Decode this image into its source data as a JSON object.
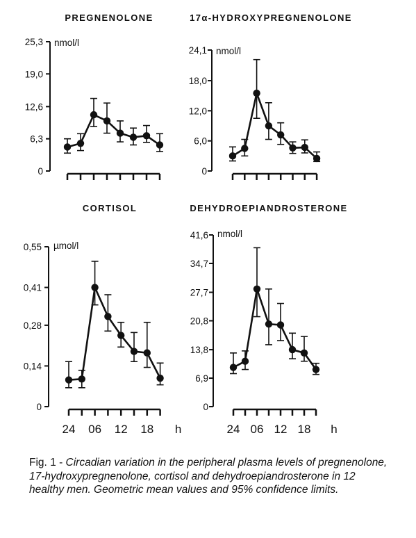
{
  "caption": {
    "figure_label": "Fig. 1 - ",
    "text": "Circadian variation in the peripheral plasma levels of pregnenolone, 17-hydroxypregnenolone, cortisol and dehydroepiandrosterone in 12 healthy men. Geometric mean values and 95% confidence limits."
  },
  "colors": {
    "ink": "#111111",
    "background": "#ffffff"
  },
  "chart_data": [
    {
      "type": "line",
      "title": "PREGNENOLONE",
      "unit": "nmol/l",
      "yticks": [
        "25,3",
        "19,0",
        "12,6",
        "6,3",
        "0"
      ],
      "ylim": [
        0,
        25.3
      ],
      "xtick_labels": [],
      "series": [
        {
          "values": [
            4.7,
            5.4,
            11.0,
            9.8,
            7.4,
            6.6,
            6.9,
            5.1
          ],
          "lower": [
            3.5,
            4.0,
            8.7,
            7.4,
            5.7,
            5.1,
            5.6,
            3.8
          ],
          "upper": [
            6.3,
            7.3,
            14.2,
            13.3,
            9.8,
            8.4,
            8.9,
            7.3
          ]
        }
      ]
    },
    {
      "type": "line",
      "title": "17α-HYDROXYPREGNENOLONE",
      "unit": "nmol/l",
      "yticks": [
        "24,1",
        "18,0",
        "12,0",
        "6,0",
        "0"
      ],
      "ylim": [
        0,
        24.1
      ],
      "xtick_labels": [],
      "series": [
        {
          "values": [
            3.0,
            4.5,
            15.5,
            9.0,
            7.2,
            4.6,
            4.7,
            2.5
          ],
          "lower": [
            2.0,
            3.0,
            10.5,
            6.3,
            5.3,
            3.5,
            3.6,
            1.9
          ],
          "upper": [
            4.8,
            6.3,
            22.2,
            13.6,
            9.6,
            5.8,
            6.2,
            3.8
          ]
        }
      ]
    },
    {
      "type": "line",
      "title": "CORTISOL",
      "unit": "µmol/l",
      "yticks": [
        "0,55",
        "0,41",
        "0,28",
        "0,14",
        "0"
      ],
      "ylim": [
        0,
        0.55
      ],
      "xtick_labels": [
        "24",
        "06",
        "12",
        "18",
        "h"
      ],
      "series": [
        {
          "values": [
            0.092,
            0.095,
            0.41,
            0.31,
            0.245,
            0.19,
            0.185,
            0.098
          ],
          "lower": [
            0.065,
            0.065,
            0.35,
            0.26,
            0.205,
            0.155,
            0.135,
            0.075
          ],
          "upper": [
            0.155,
            0.125,
            0.5,
            0.385,
            0.29,
            0.255,
            0.29,
            0.15
          ]
        }
      ]
    },
    {
      "type": "line",
      "title": "DEHYDROEPIANDROSTERONE",
      "unit": "nmol/l",
      "yticks": [
        "41,6",
        "34,7",
        "27,7",
        "20,8",
        "13,8",
        "6,9",
        "0"
      ],
      "ylim": [
        0,
        41.6
      ],
      "xtick_labels": [
        "24",
        "06",
        "12",
        "18",
        "h"
      ],
      "series": [
        {
          "values": [
            9.5,
            11.0,
            28.5,
            20.0,
            19.8,
            13.8,
            13.0,
            9.0
          ],
          "lower": [
            8.0,
            9.0,
            21.8,
            15.0,
            16.0,
            11.6,
            11.0,
            7.8
          ],
          "upper": [
            13.0,
            13.5,
            38.5,
            28.5,
            25.0,
            17.8,
            17.0,
            10.5
          ]
        }
      ]
    }
  ]
}
